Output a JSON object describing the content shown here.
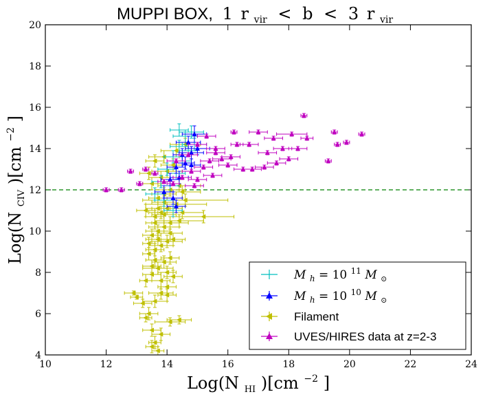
{
  "chart_data": {
    "type": "scatter",
    "title_prefix": "MUPPI BOX,",
    "title_math": [
      "1",
      "r",
      "vir",
      "<",
      "b",
      "<",
      "3",
      "r",
      "vir"
    ],
    "xlabel_parts": [
      "Log(N",
      "HI",
      ")[cm",
      "−2",
      "]"
    ],
    "ylabel_parts": [
      "Log(N",
      "CIV",
      ")[cm",
      "−2",
      "]"
    ],
    "xlim": [
      10,
      24
    ],
    "ylim": [
      4,
      20
    ],
    "xticks": [
      "10",
      "12",
      "14",
      "16",
      "18",
      "20",
      "22",
      "24"
    ],
    "yticks": [
      "4",
      "6",
      "8",
      "10",
      "12",
      "14",
      "16",
      "18",
      "20"
    ],
    "reference_line": {
      "y": 12,
      "style": "dashed",
      "color": "#008000"
    },
    "legend": {
      "placement": "lower-right",
      "entries": [
        {
          "math": [
            "M",
            "h",
            " = 10",
            "11",
            " M",
            "⊙"
          ],
          "color": "#00bfbf",
          "marker": "none"
        },
        {
          "math": [
            "M",
            "h",
            " = 10",
            "10",
            " M",
            "⊙"
          ],
          "color": "#0000ff",
          "marker": "triangle-up"
        },
        {
          "label": "Filament",
          "color": "#bfbf00",
          "marker": "triangle-left"
        },
        {
          "label": "UVES/HIRES data at z=2-3",
          "color": "#bf00bf",
          "marker": "triangle-up"
        }
      ]
    },
    "series": [
      {
        "name": "Filament",
        "color": "#bfbf00",
        "marker": "triangle-left",
        "points": [
          [
            12.9,
            7.0,
            0.3,
            0.1
          ],
          [
            13.0,
            6.8,
            0.2,
            0.1
          ],
          [
            13.2,
            6.5,
            0.3,
            0.2
          ],
          [
            13.3,
            5.8,
            0.2,
            0.2
          ],
          [
            13.5,
            5.2,
            0.3,
            0.3
          ],
          [
            13.6,
            4.6,
            0.2,
            0.3
          ],
          [
            13.7,
            4.2,
            0.2,
            0.2
          ],
          [
            13.5,
            4.4,
            0.2,
            0.3
          ],
          [
            13.8,
            5.0,
            0.3,
            0.3
          ],
          [
            14.1,
            5.6,
            0.5,
            0.2
          ],
          [
            14.4,
            5.7,
            0.4,
            0.2
          ],
          [
            13.4,
            6.0,
            0.3,
            0.3
          ],
          [
            13.6,
            6.6,
            0.4,
            0.3
          ],
          [
            13.8,
            7.0,
            0.4,
            0.3
          ],
          [
            14.0,
            7.3,
            0.3,
            0.3
          ],
          [
            13.3,
            7.6,
            0.2,
            0.3
          ],
          [
            13.5,
            7.9,
            0.3,
            0.3
          ],
          [
            13.7,
            8.2,
            0.5,
            0.3
          ],
          [
            13.9,
            8.5,
            0.4,
            0.3
          ],
          [
            14.1,
            8.7,
            0.3,
            0.3
          ],
          [
            13.4,
            8.9,
            0.2,
            0.3
          ],
          [
            13.6,
            9.1,
            0.3,
            0.3
          ],
          [
            13.8,
            9.3,
            0.4,
            0.3
          ],
          [
            14.0,
            9.5,
            0.5,
            0.3
          ],
          [
            14.2,
            9.6,
            0.4,
            0.3
          ],
          [
            13.5,
            9.8,
            0.3,
            0.3
          ],
          [
            13.7,
            10.0,
            0.4,
            0.3
          ],
          [
            13.9,
            10.2,
            0.5,
            0.3
          ],
          [
            14.1,
            10.4,
            0.6,
            0.3
          ],
          [
            14.4,
            10.5,
            0.8,
            0.3
          ],
          [
            13.6,
            10.7,
            0.3,
            0.3
          ],
          [
            13.8,
            10.9,
            0.4,
            0.3
          ],
          [
            14.0,
            11.1,
            0.5,
            0.3
          ],
          [
            14.3,
            11.3,
            1.0,
            0.3
          ],
          [
            14.6,
            11.5,
            1.4,
            0.3
          ],
          [
            13.7,
            11.6,
            0.3,
            0.3
          ],
          [
            13.9,
            11.8,
            0.4,
            0.3
          ],
          [
            14.1,
            12.0,
            0.5,
            0.3
          ],
          [
            14.4,
            12.2,
            0.7,
            0.3
          ],
          [
            13.5,
            12.3,
            0.3,
            0.3
          ],
          [
            13.8,
            12.6,
            0.4,
            0.3
          ],
          [
            14.0,
            12.9,
            0.5,
            0.3
          ],
          [
            14.2,
            13.2,
            0.4,
            0.3
          ],
          [
            13.6,
            13.4,
            0.3,
            0.3
          ],
          [
            13.9,
            13.6,
            0.5,
            0.3
          ],
          [
            14.3,
            13.9,
            0.5,
            0.3
          ],
          [
            14.6,
            14.2,
            0.5,
            0.3
          ],
          [
            13.4,
            9.4,
            0.2,
            0.3
          ],
          [
            13.6,
            8.6,
            0.3,
            0.4
          ],
          [
            13.8,
            7.6,
            0.3,
            0.4
          ],
          [
            14.0,
            6.9,
            0.3,
            0.3
          ],
          [
            13.6,
            10.4,
            0.3,
            0.3
          ],
          [
            13.7,
            11.1,
            0.4,
            0.3
          ],
          [
            13.9,
            11.4,
            0.4,
            0.3
          ],
          [
            14.1,
            9.9,
            0.4,
            0.3
          ],
          [
            13.5,
            8.3,
            0.3,
            0.3
          ],
          [
            13.7,
            9.6,
            0.4,
            0.3
          ],
          [
            13.9,
            10.8,
            0.4,
            0.3
          ],
          [
            14.5,
            10.9,
            0.7,
            0.3
          ],
          [
            14.0,
            8.0,
            0.3,
            0.3
          ],
          [
            14.5,
            11.9,
            0.6,
            0.3
          ],
          [
            15.2,
            10.7,
            1.0,
            0.3
          ],
          [
            13.4,
            12.8,
            0.3,
            0.3
          ],
          [
            13.3,
            11.0,
            0.3,
            0.3
          ],
          [
            14.2,
            7.8,
            0.3,
            0.3
          ]
        ]
      },
      {
        "name": "Mh = 10^11 Msun",
        "color": "#00bfbf",
        "marker": "none",
        "points": [
          [
            13.6,
            11.8,
            0.3,
            0.3
          ],
          [
            13.8,
            12.4,
            0.3,
            0.3
          ],
          [
            14.0,
            13.0,
            0.3,
            0.3
          ],
          [
            14.2,
            13.6,
            0.3,
            0.3
          ],
          [
            14.4,
            14.1,
            0.3,
            0.3
          ],
          [
            14.6,
            14.6,
            0.4,
            0.3
          ],
          [
            14.8,
            14.8,
            0.4,
            0.3
          ],
          [
            14.3,
            12.8,
            0.3,
            0.3
          ],
          [
            14.5,
            13.4,
            0.3,
            0.3
          ],
          [
            14.7,
            13.9,
            0.3,
            0.3
          ],
          [
            14.1,
            12.2,
            0.3,
            0.3
          ],
          [
            13.9,
            11.5,
            0.3,
            0.3
          ],
          [
            14.9,
            14.2,
            0.4,
            0.3
          ],
          [
            14.4,
            14.9,
            0.3,
            0.3
          ],
          [
            14.2,
            11.0,
            0.3,
            0.3
          ]
        ]
      },
      {
        "name": "Mh = 10^10 Msun",
        "color": "#0000ff",
        "marker": "triangle-up",
        "points": [
          [
            13.9,
            11.9,
            0.3,
            0.3
          ],
          [
            14.1,
            12.5,
            0.3,
            0.3
          ],
          [
            14.3,
            13.1,
            0.3,
            0.3
          ],
          [
            14.5,
            13.7,
            0.3,
            0.3
          ],
          [
            14.7,
            14.3,
            0.4,
            0.3
          ],
          [
            14.9,
            14.7,
            0.4,
            0.4
          ],
          [
            14.4,
            12.6,
            0.3,
            0.3
          ],
          [
            14.6,
            13.3,
            0.3,
            0.3
          ],
          [
            14.8,
            13.8,
            0.4,
            0.3
          ],
          [
            14.2,
            11.6,
            0.3,
            0.3
          ],
          [
            15.0,
            14.0,
            0.4,
            0.3
          ],
          [
            14.3,
            11.2,
            0.3,
            0.3
          ],
          [
            14.8,
            13.2,
            0.3,
            0.3
          ]
        ]
      },
      {
        "name": "UVES/HIRES data at z=2-3",
        "color": "#bf00bf",
        "marker": "triangle-up",
        "points": [
          [
            12.5,
            12.0,
            0.1,
            0.1
          ],
          [
            12.8,
            12.9,
            0.1,
            0.1
          ],
          [
            13.1,
            12.3,
            0.1,
            0.1
          ],
          [
            13.3,
            13.0,
            0.1,
            0.1
          ],
          [
            13.6,
            12.8,
            0.1,
            0.1
          ],
          [
            14.2,
            12.3,
            0.2,
            0.1
          ],
          [
            14.5,
            12.6,
            0.3,
            0.1
          ],
          [
            14.8,
            12.9,
            0.3,
            0.1
          ],
          [
            15.0,
            12.5,
            0.3,
            0.1
          ],
          [
            15.2,
            13.1,
            0.3,
            0.1
          ],
          [
            15.4,
            13.4,
            0.3,
            0.1
          ],
          [
            15.6,
            13.8,
            0.3,
            0.1
          ],
          [
            15.8,
            13.5,
            0.3,
            0.1
          ],
          [
            16.0,
            13.2,
            0.3,
            0.1
          ],
          [
            16.2,
            14.8,
            0.1,
            0.1
          ],
          [
            16.3,
            14.2,
            0.2,
            0.1
          ],
          [
            16.5,
            13.0,
            0.3,
            0.1
          ],
          [
            16.8,
            13.0,
            0.3,
            0.1
          ],
          [
            17.0,
            14.8,
            0.3,
            0.1
          ],
          [
            17.2,
            13.1,
            0.3,
            0.1
          ],
          [
            17.5,
            14.5,
            0.3,
            0.1
          ],
          [
            17.8,
            14.0,
            0.3,
            0.1
          ],
          [
            18.0,
            13.5,
            0.3,
            0.1
          ],
          [
            18.3,
            14.0,
            0.3,
            0.1
          ],
          [
            18.5,
            15.6,
            0.1,
            0.1
          ],
          [
            18.6,
            14.5,
            0.2,
            0.1
          ],
          [
            19.3,
            13.4,
            0.1,
            0.1
          ],
          [
            19.5,
            14.8,
            0.1,
            0.1
          ],
          [
            19.6,
            14.2,
            0.1,
            0.1
          ],
          [
            19.9,
            14.3,
            0.1,
            0.1
          ],
          [
            20.4,
            14.7,
            0.1,
            0.1
          ],
          [
            15.0,
            14.2,
            0.3,
            0.1
          ],
          [
            15.3,
            14.6,
            0.3,
            0.1
          ],
          [
            15.6,
            14.0,
            0.3,
            0.1
          ],
          [
            14.7,
            13.7,
            0.3,
            0.1
          ],
          [
            14.9,
            12.2,
            0.3,
            0.1
          ],
          [
            15.5,
            12.7,
            0.3,
            0.1
          ],
          [
            16.1,
            13.6,
            0.3,
            0.1
          ],
          [
            14.3,
            13.4,
            0.3,
            0.1
          ],
          [
            17.6,
            13.3,
            0.3,
            0.1
          ],
          [
            12.0,
            12.0,
            0.1,
            0.1
          ],
          [
            13.9,
            12.4,
            0.2,
            0.1
          ],
          [
            16.7,
            14.2,
            0.3,
            0.1
          ],
          [
            18.1,
            14.7,
            0.5,
            0.1
          ],
          [
            17.3,
            13.8,
            0.3,
            0.1
          ]
        ]
      }
    ]
  }
}
